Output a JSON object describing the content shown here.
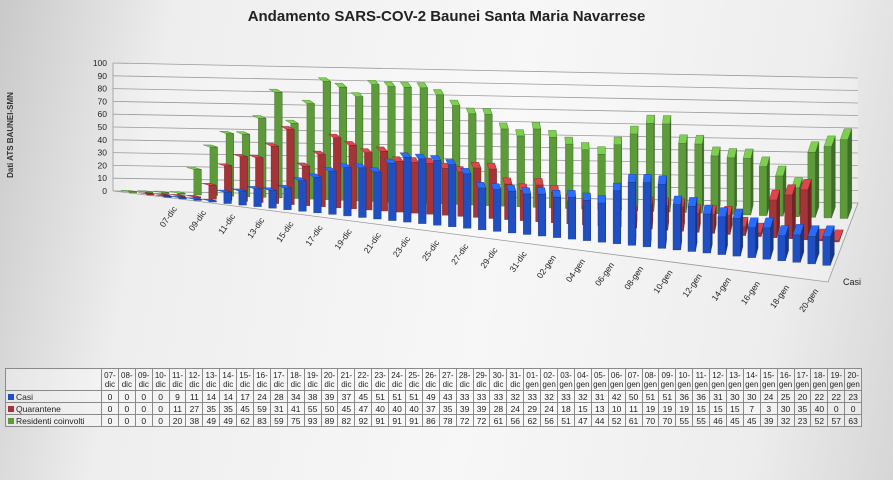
{
  "chart_data": {
    "type": "bar",
    "title": "Andamento SARS-COV-2 Baunei Santa Maria Navarrese",
    "ylabel": "Dati ATS BAUNEI-SMN",
    "zlabel": "Casi",
    "ylim": [
      0,
      100
    ],
    "yticks": [
      "0",
      "10",
      "20",
      "30",
      "40",
      "50",
      "60",
      "70",
      "80",
      "90",
      "100"
    ],
    "categories": [
      "07-dic",
      "08-dic",
      "09-dic",
      "10-dic",
      "11-dic",
      "12-dic",
      "13-dic",
      "14-dic",
      "15-dic",
      "16-dic",
      "17-dic",
      "18-dic",
      "19-dic",
      "20-dic",
      "21-dic",
      "22-dic",
      "23-dic",
      "24-dic",
      "25-dic",
      "26-dic",
      "27-dic",
      "28-dic",
      "29-dic",
      "30-dic",
      "31-dic",
      "01-gen",
      "02-gen",
      "03-gen",
      "04-gen",
      "05-gen",
      "06-gen",
      "07-gen",
      "08-gen",
      "09-gen",
      "10-gen",
      "11-gen",
      "12-gen",
      "13-gen",
      "14-gen",
      "15-gen",
      "16-gen",
      "17-gen",
      "18-gen",
      "19-gen",
      "20-gen"
    ],
    "axis_labels": [
      "07-dic",
      "09-dic",
      "11-dic",
      "13-dic",
      "15-dic",
      "17-dic",
      "19-dic",
      "21-dic",
      "23-dic",
      "25-dic",
      "27-dic",
      "29-dic",
      "31-dic",
      "02-gen",
      "04-gen",
      "06-gen",
      "08-gen",
      "10-gen",
      "12-gen",
      "14-gen",
      "16-gen",
      "18-gen",
      "20-gen"
    ],
    "table_dates": [
      [
        "07-",
        "dic"
      ],
      [
        "08-",
        "dic"
      ],
      [
        "09-",
        "dic"
      ],
      [
        "10-",
        "dic"
      ],
      [
        "11-",
        "dic"
      ],
      [
        "12-",
        "dic"
      ],
      [
        "13-",
        "dic"
      ],
      [
        "14-",
        "dic"
      ],
      [
        "15-",
        "dic"
      ],
      [
        "16-",
        "dic"
      ],
      [
        "17-",
        "dic"
      ],
      [
        "18-",
        "dic"
      ],
      [
        "19-",
        "dic"
      ],
      [
        "20-",
        "dic"
      ],
      [
        "21-",
        "dic"
      ],
      [
        "22-",
        "dic"
      ],
      [
        "23-",
        "dic"
      ],
      [
        "24-",
        "dic"
      ],
      [
        "25-",
        "dic"
      ],
      [
        "26-",
        "dic"
      ],
      [
        "27-",
        "dic"
      ],
      [
        "28-",
        "dic"
      ],
      [
        "29-",
        "dic"
      ],
      [
        "30-",
        "dic"
      ],
      [
        "31-",
        "dic"
      ],
      [
        "01-",
        "gen"
      ],
      [
        "02-",
        "gen"
      ],
      [
        "03-",
        "gen"
      ],
      [
        "04-",
        "gen"
      ],
      [
        "05-",
        "gen"
      ],
      [
        "06-",
        "gen"
      ],
      [
        "07-",
        "gen"
      ],
      [
        "08-",
        "gen"
      ],
      [
        "09-",
        "gen"
      ],
      [
        "10-",
        "gen"
      ],
      [
        "11-",
        "gen"
      ],
      [
        "12-",
        "gen"
      ],
      [
        "13-",
        "gen"
      ],
      [
        "14-",
        "gen"
      ],
      [
        "15-",
        "gen"
      ],
      [
        "16-",
        "gen"
      ],
      [
        "17-",
        "gen"
      ],
      [
        "18-",
        "gen"
      ],
      [
        "19-",
        "gen"
      ],
      [
        "20-",
        "gen"
      ]
    ],
    "series": [
      {
        "name": "Casi",
        "color": "#1f4fc2",
        "values": [
          0,
          0,
          0,
          0,
          9,
          11,
          14,
          14,
          17,
          24,
          28,
          34,
          38,
          39,
          37,
          45,
          51,
          51,
          51,
          49,
          43,
          33,
          33,
          33,
          32,
          33,
          32,
          33,
          32,
          31,
          42,
          50,
          51,
          51,
          36,
          36,
          31,
          30,
          30,
          24,
          25,
          20,
          22,
          22,
          23
        ]
      },
      {
        "name": "Quarantene",
        "color": "#a53438",
        "values": [
          0,
          0,
          0,
          0,
          11,
          27,
          35,
          35,
          45,
          59,
          31,
          41,
          55,
          50,
          45,
          47,
          40,
          40,
          40,
          37,
          35,
          39,
          39,
          28,
          24,
          29,
          24,
          18,
          15,
          13,
          10,
          11,
          19,
          19,
          19,
          15,
          15,
          15,
          7,
          3,
          30,
          35,
          40,
          0,
          0
        ]
      },
      {
        "name": "Residenti coinvolti",
        "color": "#5c9a3a",
        "values": [
          0,
          0,
          0,
          0,
          20,
          38,
          49,
          49,
          62,
          83,
          59,
          75,
          93,
          89,
          82,
          92,
          91,
          91,
          91,
          86,
          78,
          72,
          72,
          61,
          56,
          62,
          56,
          51,
          47,
          44,
          52,
          61,
          70,
          70,
          55,
          55,
          46,
          45,
          45,
          39,
          32,
          23,
          52,
          57,
          63
        ]
      }
    ]
  }
}
